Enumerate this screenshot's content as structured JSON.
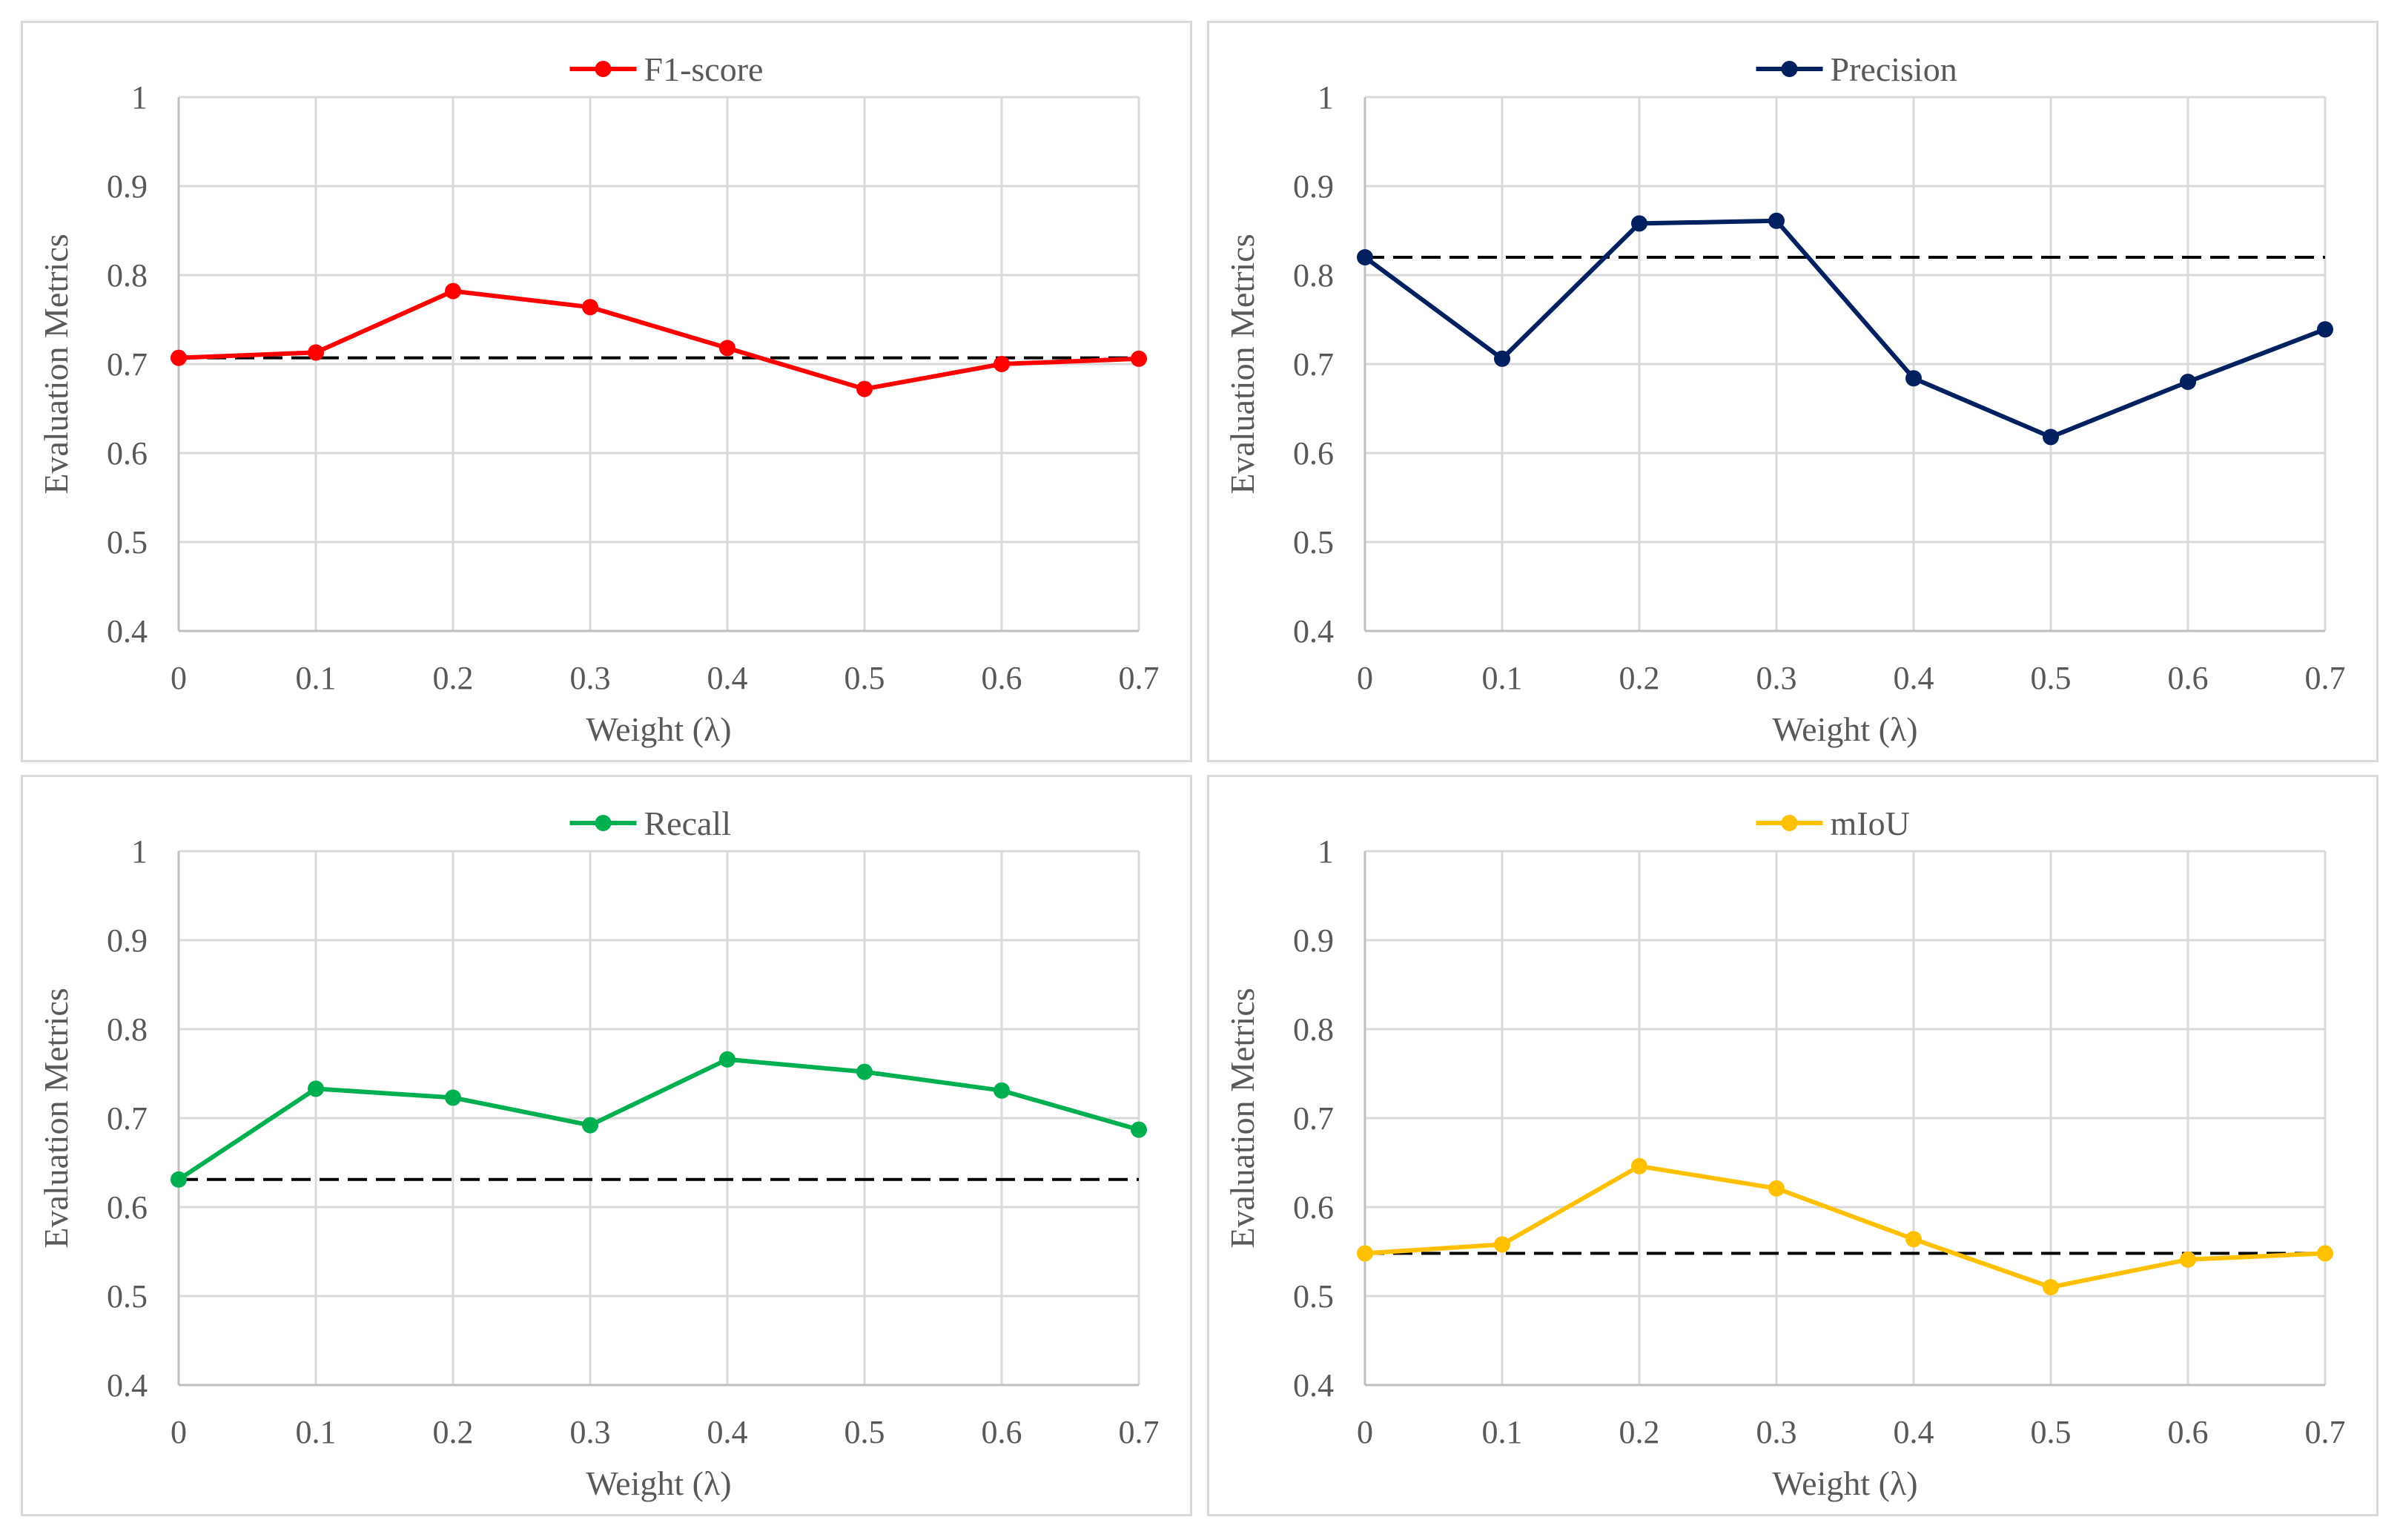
{
  "chart_data": [
    {
      "type": "line",
      "title": "",
      "legend": "F1-score",
      "color": "#ff0000",
      "xlabel": "Weight (λ)",
      "ylabel": "Evaluation Metrics",
      "x": [
        0,
        0.1,
        0.2,
        0.3,
        0.4,
        0.5,
        0.6,
        0.7
      ],
      "xtick_labels": [
        "0",
        "0.1",
        "0.2",
        "0.3",
        "0.4",
        "0.5",
        "0.6",
        "0.7"
      ],
      "values": [
        0.707,
        0.713,
        0.782,
        0.764,
        0.718,
        0.672,
        0.7,
        0.706
      ],
      "baseline": 0.707,
      "ylim": [
        0.4,
        1.0
      ],
      "ytick_labels": [
        "0.4",
        "0.5",
        "0.6",
        "0.7",
        "0.8",
        "0.9",
        "1"
      ],
      "grid": true,
      "legend_position": "top-center"
    },
    {
      "type": "line",
      "title": "",
      "legend": "Precision",
      "color": "#002060",
      "xlabel": "Weight (λ)",
      "ylabel": "Evaluation Metrics",
      "x": [
        0,
        0.1,
        0.2,
        0.3,
        0.4,
        0.5,
        0.6,
        0.7
      ],
      "xtick_labels": [
        "0",
        "0.1",
        "0.2",
        "0.3",
        "0.4",
        "0.5",
        "0.6",
        "0.7"
      ],
      "values": [
        0.82,
        0.706,
        0.858,
        0.861,
        0.684,
        0.618,
        0.68,
        0.739
      ],
      "baseline": 0.82,
      "ylim": [
        0.4,
        1.0
      ],
      "ytick_labels": [
        "0.4",
        "0.5",
        "0.6",
        "0.7",
        "0.8",
        "0.9",
        "1"
      ],
      "grid": true,
      "legend_position": "top-center"
    },
    {
      "type": "line",
      "title": "",
      "legend": "Recall",
      "color": "#00b050",
      "xlabel": "Weight (λ)",
      "ylabel": "Evaluation Metrics",
      "x": [
        0,
        0.1,
        0.2,
        0.3,
        0.4,
        0.5,
        0.6,
        0.7
      ],
      "xtick_labels": [
        "0",
        "0.1",
        "0.2",
        "0.3",
        "0.4",
        "0.5",
        "0.6",
        "0.7"
      ],
      "values": [
        0.631,
        0.733,
        0.723,
        0.692,
        0.766,
        0.752,
        0.731,
        0.687
      ],
      "baseline": 0.631,
      "ylim": [
        0.4,
        1.0
      ],
      "ytick_labels": [
        "0.4",
        "0.5",
        "0.6",
        "0.7",
        "0.8",
        "0.9",
        "1"
      ],
      "grid": true,
      "legend_position": "top-center"
    },
    {
      "type": "line",
      "title": "",
      "legend": "mIoU",
      "color": "#ffc000",
      "xlabel": "Weight (λ)",
      "ylabel": "Evaluation Metrics",
      "x": [
        0,
        0.1,
        0.2,
        0.3,
        0.4,
        0.5,
        0.6,
        0.7
      ],
      "xtick_labels": [
        "0",
        "0.1",
        "0.2",
        "0.3",
        "0.4",
        "0.5",
        "0.6",
        "0.7"
      ],
      "values": [
        0.548,
        0.558,
        0.646,
        0.621,
        0.564,
        0.51,
        0.541,
        0.548
      ],
      "baseline": 0.548,
      "ylim": [
        0.4,
        1.0
      ],
      "ytick_labels": [
        "0.4",
        "0.5",
        "0.6",
        "0.7",
        "0.8",
        "0.9",
        "1"
      ],
      "grid": true,
      "legend_position": "top-center"
    }
  ]
}
